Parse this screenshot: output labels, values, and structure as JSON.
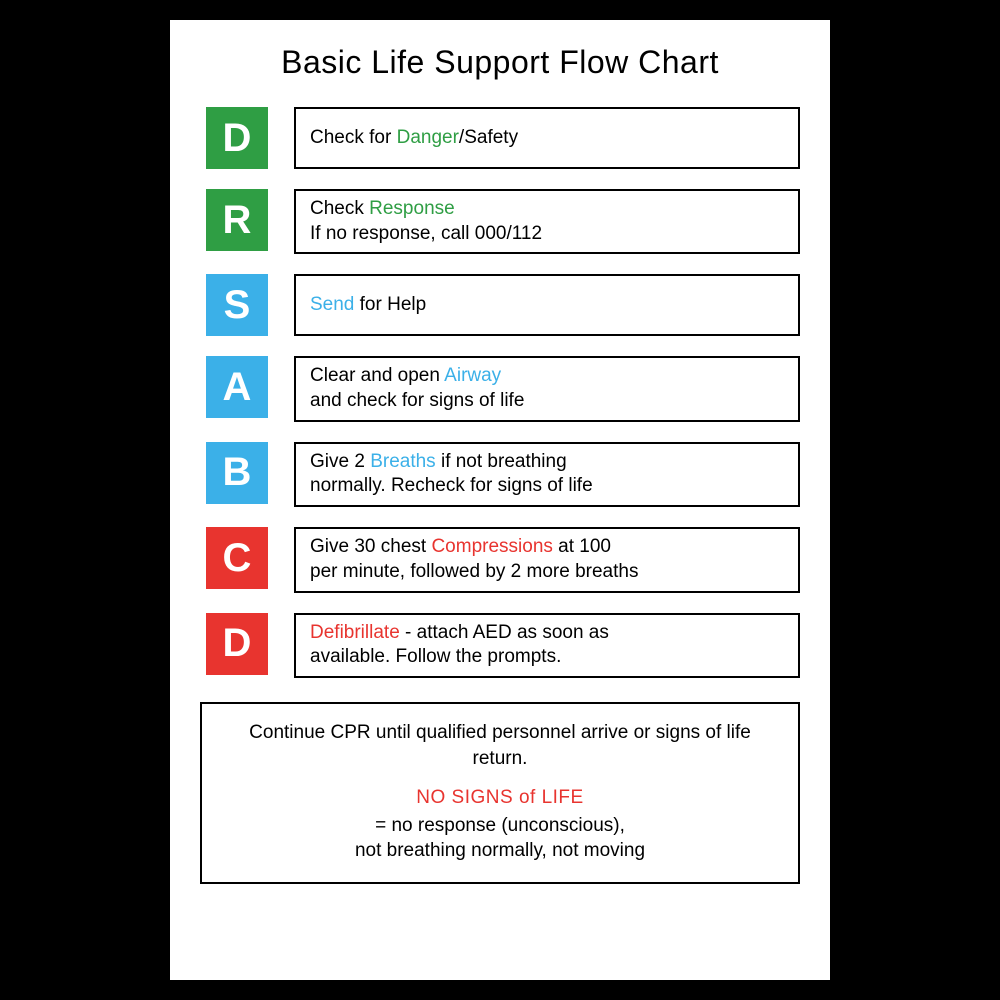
{
  "title": "Basic Life Support Flow Chart",
  "colors": {
    "green": "#2f9e44",
    "blue": "#3bb0e8",
    "red": "#e8342f",
    "text": "#000000",
    "bg": "#ffffff",
    "page_bg": "#000000"
  },
  "steps": [
    {
      "letter": "D",
      "color": "#2f9e44",
      "segments": [
        {
          "text": "Check for ",
          "color": "#000000"
        },
        {
          "text": "Danger",
          "color": "#2f9e44"
        },
        {
          "text": "/Safety",
          "color": "#000000"
        }
      ]
    },
    {
      "letter": "R",
      "color": "#2f9e44",
      "segments": [
        {
          "text": "Check ",
          "color": "#000000"
        },
        {
          "text": "Response",
          "color": "#2f9e44"
        }
      ],
      "line2": "If no response, call 000/112"
    },
    {
      "letter": "S",
      "color": "#3bb0e8",
      "segments": [
        {
          "text": "Send",
          "color": "#3bb0e8"
        },
        {
          "text": " for Help",
          "color": "#000000"
        }
      ]
    },
    {
      "letter": "A",
      "color": "#3bb0e8",
      "segments": [
        {
          "text": "Clear and open ",
          "color": "#000000"
        },
        {
          "text": "Airway",
          "color": "#3bb0e8"
        }
      ],
      "line2": "and check for signs of life"
    },
    {
      "letter": "B",
      "color": "#3bb0e8",
      "segments": [
        {
          "text": "Give 2 ",
          "color": "#000000"
        },
        {
          "text": "Breaths",
          "color": "#3bb0e8"
        },
        {
          "text": " if not breathing",
          "color": "#000000"
        }
      ],
      "line2": "normally. Recheck for signs of life"
    },
    {
      "letter": "C",
      "color": "#e8342f",
      "segments": [
        {
          "text": "Give 30 chest ",
          "color": "#000000"
        },
        {
          "text": "Compressions",
          "color": "#e8342f"
        },
        {
          "text": " at 100",
          "color": "#000000"
        }
      ],
      "line2": "per minute, followed by 2 more breaths"
    },
    {
      "letter": "D",
      "color": "#e8342f",
      "segments": [
        {
          "text": "Defibrillate",
          "color": "#e8342f"
        },
        {
          "text": " - attach AED as soon as",
          "color": "#000000"
        }
      ],
      "line2": "available. Follow the prompts."
    }
  ],
  "footer": {
    "line1": "Continue CPR until qualified personnel arrive or signs of life return.",
    "heading": "NO SIGNS of LIFE",
    "heading_color": "#e8342f",
    "line2": "= no response (unconscious),",
    "line3": "not breathing normally, not moving"
  }
}
